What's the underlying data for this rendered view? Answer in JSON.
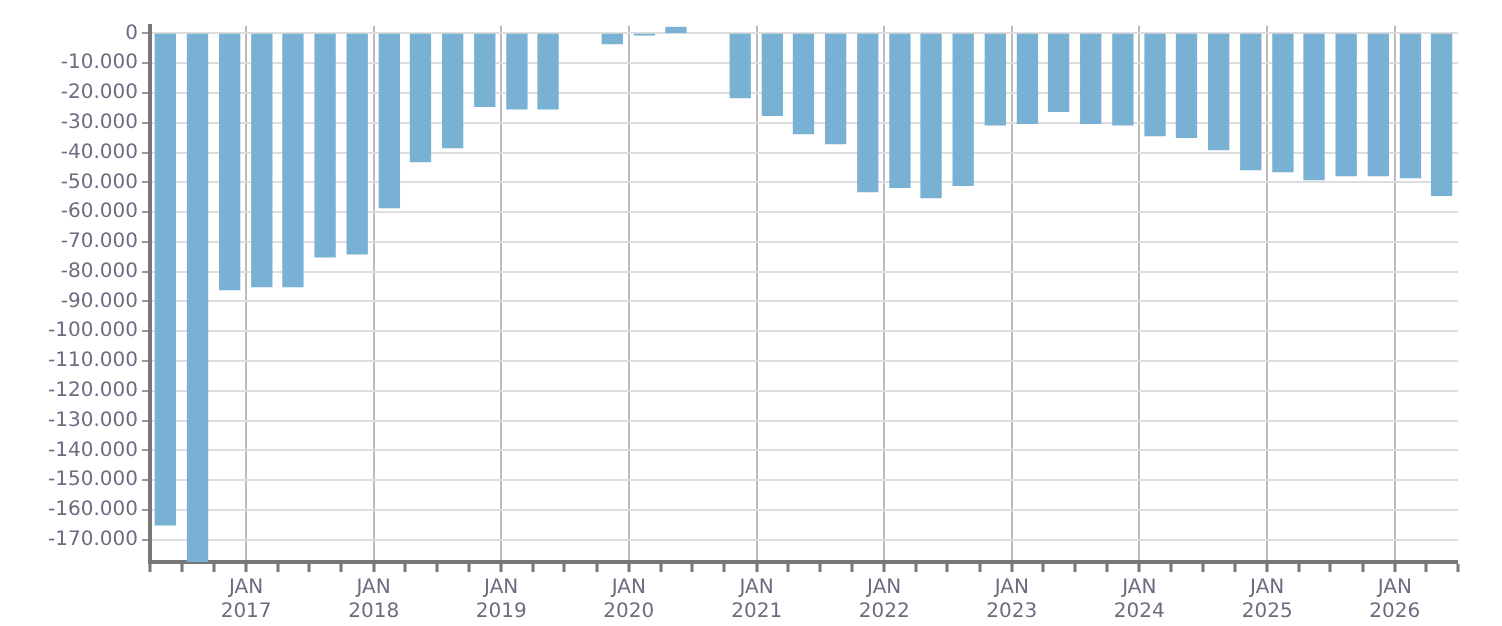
{
  "chart_data": {
    "type": "bar",
    "color": "#78b1d3",
    "x": [
      "2016-05-15",
      "2016-08-15",
      "2016-11-15",
      "2017-02-15",
      "2017-05-15",
      "2017-08-15",
      "2017-11-15",
      "2018-02-15",
      "2018-05-15",
      "2018-08-15",
      "2018-11-15",
      "2019-02-15",
      "2019-05-15",
      "2019-08-15",
      "2019-11-15",
      "2020-02-15",
      "2020-05-15",
      "2020-08-15",
      "2020-11-15",
      "2021-02-15",
      "2021-05-15",
      "2021-08-15",
      "2021-11-15",
      "2022-02-15",
      "2022-05-15",
      "2022-08-15",
      "2022-11-15",
      "2023-02-15",
      "2023-05-15",
      "2023-08-15",
      "2023-11-15",
      "2024-02-15",
      "2024-05-15",
      "2024-08-15",
      "2024-11-15",
      "2025-02-15",
      "2025-05-15",
      "2025-08-15",
      "2025-11-15",
      "2026-02-15",
      "2026-05-15"
    ],
    "values": [
      -165000,
      -177500,
      -86000,
      -85000,
      -85000,
      -75000,
      -74000,
      -58500,
      -43000,
      -38300,
      -24500,
      -25300,
      -25300,
      null,
      -3400,
      -500,
      2000,
      null,
      -21500,
      -27500,
      -33600,
      -37000,
      -53100,
      -51700,
      -55100,
      -51000,
      -30700,
      -30200,
      -26200,
      -30200,
      -30700,
      -34300,
      -34900,
      -39000,
      -45700,
      -46400,
      -49100,
      -47700,
      -47700,
      -48400,
      -54400
    ],
    "xlim": [
      "2016-04-01",
      "2026-07-01"
    ],
    "xticks": [
      {
        "value": "2016-04-01",
        "label": null
      },
      {
        "value": "2016-07-01",
        "label": null
      },
      {
        "value": "2016-10-01",
        "label": null
      },
      {
        "value": "2017-01-01",
        "label": "JAN 2017"
      },
      {
        "value": "2017-04-01",
        "label": null
      },
      {
        "value": "2017-07-01",
        "label": null
      },
      {
        "value": "2017-10-01",
        "label": null
      },
      {
        "value": "2018-01-01",
        "label": "JAN 2018"
      },
      {
        "value": "2018-04-01",
        "label": null
      },
      {
        "value": "2018-07-01",
        "label": null
      },
      {
        "value": "2018-10-01",
        "label": null
      },
      {
        "value": "2019-01-01",
        "label": "JAN 2019"
      },
      {
        "value": "2019-04-01",
        "label": null
      },
      {
        "value": "2019-07-01",
        "label": null
      },
      {
        "value": "2019-10-01",
        "label": null
      },
      {
        "value": "2020-01-01",
        "label": "JAN 2020"
      },
      {
        "value": "2020-04-01",
        "label": null
      },
      {
        "value": "2020-07-01",
        "label": null
      },
      {
        "value": "2020-10-01",
        "label": null
      },
      {
        "value": "2021-01-01",
        "label": "JAN 2021"
      },
      {
        "value": "2021-04-01",
        "label": null
      },
      {
        "value": "2021-07-01",
        "label": null
      },
      {
        "value": "2021-10-01",
        "label": null
      },
      {
        "value": "2022-01-01",
        "label": "JAN 2022"
      },
      {
        "value": "2022-04-01",
        "label": null
      },
      {
        "value": "2022-07-01",
        "label": null
      },
      {
        "value": "2022-10-01",
        "label": null
      },
      {
        "value": "2023-01-01",
        "label": "JAN 2023"
      },
      {
        "value": "2023-04-01",
        "label": null
      },
      {
        "value": "2023-07-01",
        "label": null
      },
      {
        "value": "2023-10-01",
        "label": null
      },
      {
        "value": "2024-01-01",
        "label": "JAN 2024"
      },
      {
        "value": "2024-04-01",
        "label": null
      },
      {
        "value": "2024-07-01",
        "label": null
      },
      {
        "value": "2024-10-01",
        "label": null
      },
      {
        "value": "2025-01-01",
        "label": "JAN 2025"
      },
      {
        "value": "2025-04-01",
        "label": null
      },
      {
        "value": "2025-07-01",
        "label": null
      },
      {
        "value": "2025-10-01",
        "label": null
      },
      {
        "value": "2026-01-01",
        "label": "JAN 2026"
      },
      {
        "value": "2026-04-01",
        "label": null
      },
      {
        "value": "2026-07-01",
        "label": null
      }
    ],
    "ylim": [
      -177500,
      2500
    ],
    "yticks": [
      0,
      {
        "value": -10000,
        "label": "-10.000"
      },
      {
        "value": -20000,
        "label": "-20.000"
      },
      {
        "value": -30000,
        "label": "-30.000"
      },
      {
        "value": -40000,
        "label": "-40.000"
      },
      {
        "value": -50000,
        "label": "-50.000"
      },
      {
        "value": -60000,
        "label": "-60.000"
      },
      {
        "value": -70000,
        "label": "-70.000"
      },
      {
        "value": -80000,
        "label": "-80.000"
      },
      {
        "value": -90000,
        "label": "-90.000"
      },
      {
        "value": -100000,
        "label": "-100.000"
      },
      {
        "value": -110000,
        "label": "-110.000"
      },
      {
        "value": -120000,
        "label": "-120.000"
      },
      {
        "value": -130000,
        "label": "-130.000"
      },
      {
        "value": -140000,
        "label": "-140.000"
      },
      {
        "value": -150000,
        "label": "-150.000"
      },
      {
        "value": -160000,
        "label": "-160.000"
      },
      {
        "value": -170000,
        "label": "-170.000"
      }
    ],
    "grid": true,
    "legend": false
  }
}
